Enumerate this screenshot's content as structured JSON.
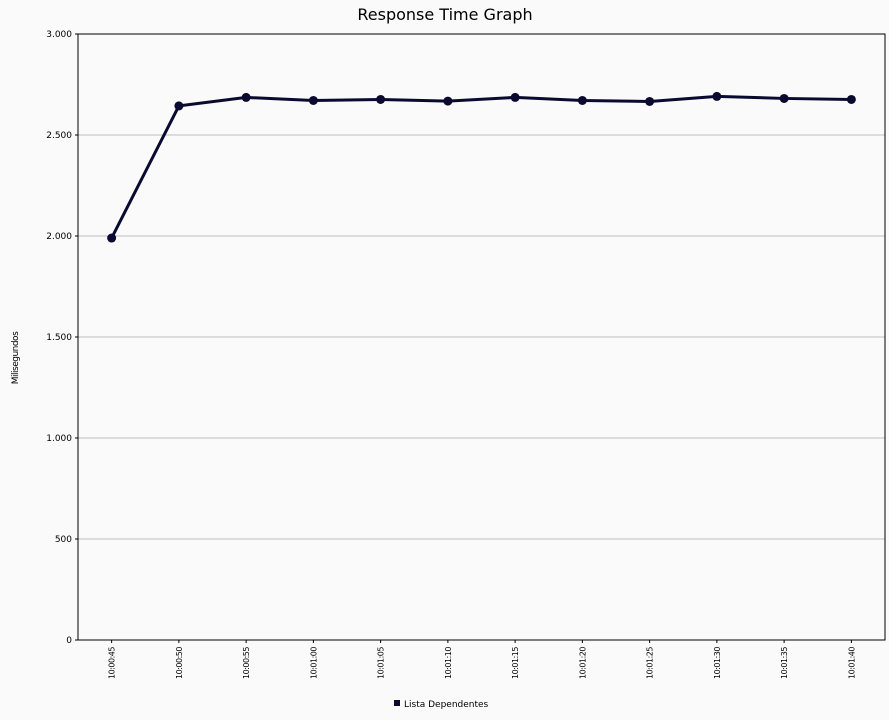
{
  "chart_data": {
    "type": "line",
    "title": "Response Time Graph",
    "y_label": "Milisegundos",
    "categories": [
      "10:00:45",
      "10:00:50",
      "10:00:55",
      "10:01:00",
      "10:01:05",
      "10:01:10",
      "10:01:15",
      "10:01:20",
      "10:01:25",
      "10:01:30",
      "10:01:35",
      "10:01:40"
    ],
    "series": [
      {
        "name": "Lista Dependentes",
        "color": "#0a0a30",
        "values": [
          1990,
          2644,
          2686,
          2671,
          2676,
          2668,
          2686,
          2671,
          2666,
          2691,
          2681,
          2676
        ]
      }
    ],
    "ylim": [
      0,
      3000
    ],
    "yticks": [
      0,
      500,
      {
        "value": 1000,
        "label": "1.000"
      },
      {
        "value": 1500,
        "label": "1.500"
      },
      {
        "value": 2000,
        "label": "2.000"
      },
      {
        "value": 2500,
        "label": "2.500"
      },
      {
        "value": 3000,
        "label": "3.000"
      }
    ],
    "grid": true,
    "legend": "bottom"
  }
}
